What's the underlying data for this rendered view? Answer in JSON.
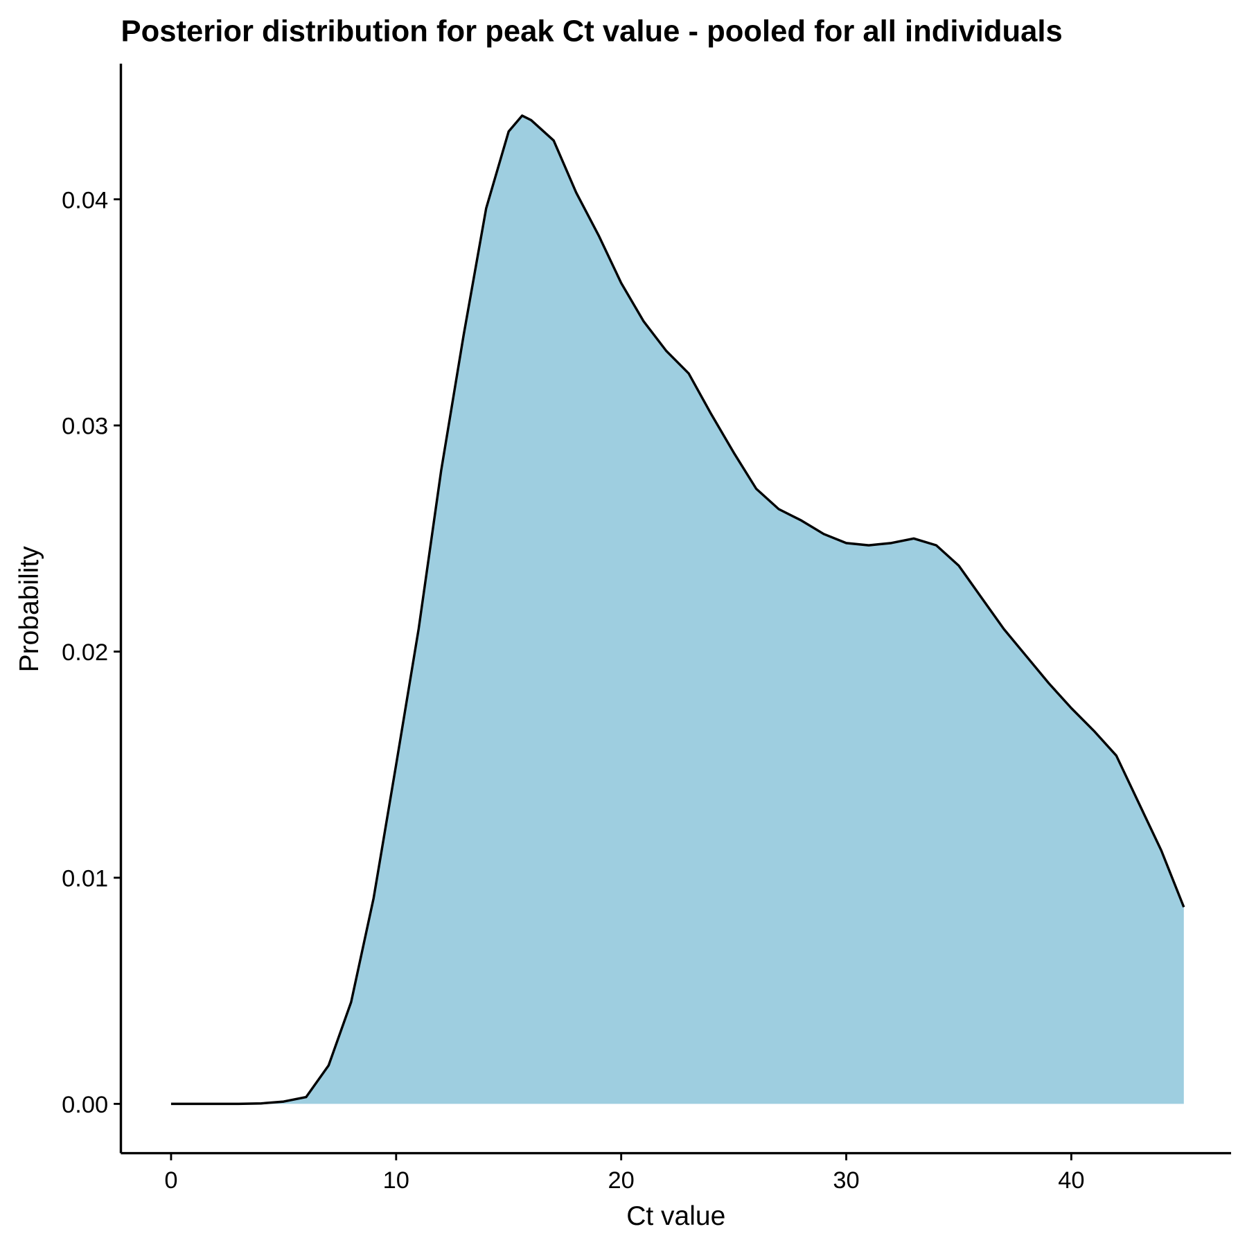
{
  "chart_data": {
    "type": "area",
    "title": "Posterior distribution for peak Ct value - pooled for all individuals",
    "x_label": "Ct value",
    "y_label": "Probability",
    "x": [
      0,
      1,
      2,
      3,
      4,
      5,
      6,
      7,
      8,
      9,
      10,
      11,
      12,
      13,
      14,
      15,
      15.6,
      16,
      17,
      18,
      19,
      20,
      21,
      22,
      23,
      24,
      25,
      26,
      27,
      28,
      29,
      30,
      31,
      32,
      33,
      34,
      35,
      36,
      37,
      38,
      39,
      40,
      41,
      42,
      43,
      44,
      45
    ],
    "series": [
      {
        "name": "Probability",
        "color": "#9ecee0",
        "line_color": "#000000",
        "values": [
          0,
          0,
          0,
          0,
          2e-05,
          0.0001,
          0.0003,
          0.0017,
          0.0045,
          0.0091,
          0.015,
          0.021,
          0.028,
          0.034,
          0.0396,
          0.043,
          0.0437,
          0.0435,
          0.0426,
          0.0403,
          0.0384,
          0.0363,
          0.0346,
          0.0333,
          0.0323,
          0.0305,
          0.0288,
          0.0272,
          0.0263,
          0.0258,
          0.0252,
          0.0248,
          0.0247,
          0.0248,
          0.025,
          0.0247,
          0.0238,
          0.0224,
          0.021,
          0.0198,
          0.0186,
          0.0175,
          0.0165,
          0.0154,
          0.0133,
          0.0112,
          0.0087
        ]
      }
    ],
    "xlim": [
      -2.23,
      47.1
    ],
    "ylim": [
      -0.00218,
      0.046
    ],
    "xticks": [
      0,
      10,
      20,
      30,
      40
    ],
    "yticks": [
      {
        "value": 0,
        "label": "0.00"
      },
      {
        "value": 0.01,
        "label": "0.01"
      },
      {
        "value": 0.02,
        "label": "0.02"
      },
      {
        "value": 0.03,
        "label": "0.03"
      },
      {
        "value": 0.04,
        "label": "0.04"
      }
    ],
    "grid": false
  }
}
